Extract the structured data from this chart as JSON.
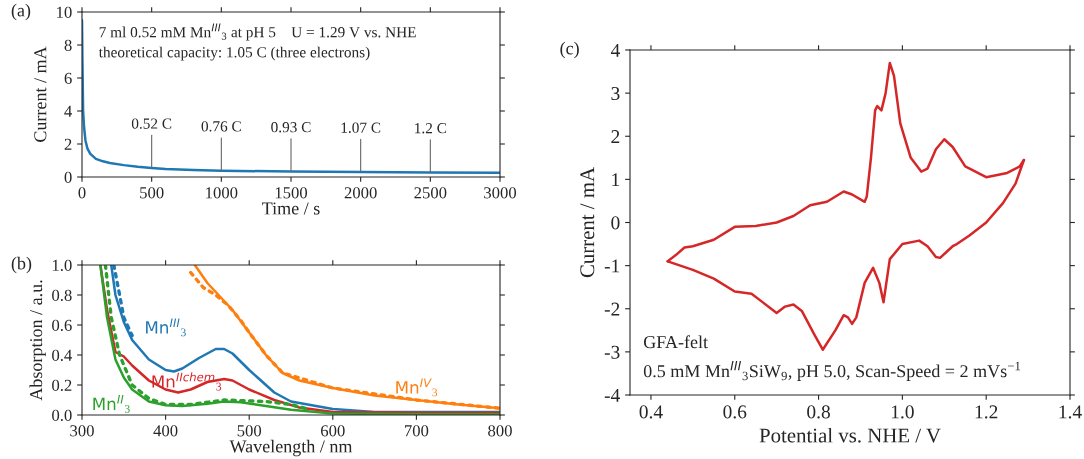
{
  "chart_data": [
    {
      "type": "line",
      "title": "(a)",
      "xlabel": "Time / s",
      "ylabel": "Current / mA",
      "xlim": [
        0,
        3000
      ],
      "ylim": [
        0,
        10
      ],
      "xticks": [
        0,
        500,
        1000,
        1500,
        2000,
        2500,
        3000
      ],
      "yticks": [
        0,
        2,
        4,
        6,
        8,
        10
      ],
      "series": [
        {
          "color": "#1f77b4",
          "x": [
            0,
            3,
            8,
            15,
            25,
            40,
            60,
            100,
            150,
            200,
            300,
            400,
            500,
            600,
            800,
            1000,
            1500,
            2000,
            2500,
            3000
          ],
          "values": [
            9.5,
            7,
            4,
            3,
            2.2,
            1.7,
            1.4,
            1.1,
            0.95,
            0.85,
            0.72,
            0.62,
            0.55,
            0.48,
            0.42,
            0.38,
            0.33,
            0.3,
            0.27,
            0.25
          ]
        }
      ],
      "annotations": [
        "7 ml 0.52 mM Mn$^{III}$$_{3}$ at pH 5    U = 1.29 V vs. NHE",
        "theoretical capacity: 1.05 C (three electrons)",
        {
          "text": "0.52 C",
          "x": 500,
          "y": 0.55
        },
        {
          "text": "0.76 C",
          "x": 1000,
          "y": 0.38
        },
        {
          "text": "0.93 C",
          "x": 1500,
          "y": 0.33
        },
        {
          "text": "1.07 C",
          "x": 2000,
          "y": 0.3
        },
        {
          "text": "1.2 C",
          "x": 2500,
          "y": 0.27
        }
      ]
    },
    {
      "type": "line",
      "title": "(b)",
      "xlabel": "Wavelength / nm",
      "ylabel": "Absorption / a.u.",
      "xlim": [
        300,
        800
      ],
      "ylim": [
        0,
        1
      ],
      "xticks": [
        300,
        400,
        500,
        600,
        700,
        800
      ],
      "yticks": [
        {
          "value": 0,
          "label": "0.0"
        },
        0.2,
        0.4,
        0.6,
        0.8,
        {
          "value": 1,
          "label": "1.0"
        }
      ],
      "series": [
        {
          "name": "Mn$^{III}$$_{3}$",
          "color": "#1f77b4",
          "x": [
            335,
            340,
            350,
            360,
            380,
            400,
            410,
            420,
            440,
            460,
            470,
            480,
            500,
            510,
            530,
            550,
            600,
            650,
            700,
            800
          ],
          "values": [
            1.0,
            0.8,
            0.62,
            0.5,
            0.37,
            0.3,
            0.29,
            0.31,
            0.38,
            0.44,
            0.44,
            0.41,
            0.3,
            0.25,
            0.15,
            0.09,
            0.04,
            0.02,
            0.02,
            0.02
          ]
        },
        {
          "name": "Mn$^{IIchem}$$_{3}$",
          "color": "#d62728",
          "x": [
            322,
            330,
            340,
            350,
            360,
            380,
            400,
            415,
            430,
            450,
            470,
            480,
            500,
            530,
            560,
            600,
            700,
            800
          ],
          "values": [
            1.0,
            0.7,
            0.42,
            0.39,
            0.33,
            0.23,
            0.17,
            0.15,
            0.17,
            0.22,
            0.24,
            0.23,
            0.17,
            0.1,
            0.05,
            0.02,
            0.015,
            0.015
          ]
        },
        {
          "name": "Mn$^{II}$$_{3}$",
          "color": "#2ca02c",
          "x": [
            322,
            330,
            340,
            350,
            360,
            380,
            400,
            420,
            450,
            470,
            490,
            520,
            550,
            600,
            700,
            800
          ],
          "values": [
            1.0,
            0.65,
            0.37,
            0.25,
            0.17,
            0.09,
            0.065,
            0.06,
            0.075,
            0.09,
            0.085,
            0.06,
            0.035,
            0.01,
            0.005,
            0.005
          ]
        },
        {
          "name": "Mn$^{IV}$$_{3}$",
          "color": "#ff7f0e",
          "x": [
            435,
            450,
            470,
            480,
            500,
            520,
            540,
            560,
            600,
            650,
            700,
            750,
            800
          ],
          "values": [
            1.0,
            0.88,
            0.76,
            0.7,
            0.55,
            0.4,
            0.28,
            0.23,
            0.18,
            0.13,
            0.1,
            0.07,
            0.045
          ]
        },
        {
          "color": "#1f77b4",
          "line_style": "dotted",
          "x": [
            338,
            345,
            350,
            360
          ],
          "values": [
            1.0,
            0.8,
            0.65,
            0.53
          ]
        },
        {
          "color": "#2ca02c",
          "line_style": "dotted",
          "x": [
            328,
            335,
            345,
            360,
            380,
            400,
            430,
            470,
            520,
            550,
            570
          ],
          "values": [
            1.0,
            0.65,
            0.4,
            0.2,
            0.11,
            0.07,
            0.07,
            0.1,
            0.09,
            0.07,
            0.04
          ]
        },
        {
          "color": "#ff7f0e",
          "line_style": "dotted",
          "x": [
            430,
            445,
            460,
            475,
            490,
            500,
            520,
            540,
            600,
            700,
            800
          ],
          "values": [
            0.95,
            0.85,
            0.8,
            0.73,
            0.63,
            0.55,
            0.4,
            0.28,
            0.18,
            0.1,
            0.045
          ]
        }
      ],
      "legend": false
    },
    {
      "type": "line",
      "title": "(c)",
      "xlabel": "Potential vs. NHE / V",
      "ylabel": "Current / mA",
      "xlim": [
        0.35,
        1.4
      ],
      "ylim": [
        -4,
        4
      ],
      "xticks": [
        0.4,
        0.6,
        0.8,
        {
          "value": 1.0,
          "label": "1.0"
        },
        1.2,
        1.4
      ],
      "yticks": [
        {
          "value": -4,
          "label": "-4"
        },
        {
          "value": -3,
          "label": "-3"
        },
        {
          "value": -2,
          "label": "-2"
        },
        {
          "value": -1,
          "label": "-1"
        },
        0,
        1,
        2,
        3,
        4
      ],
      "series": [
        {
          "color": "#d62728",
          "x": [
            0.44,
            0.46,
            0.48,
            0.5,
            0.55,
            0.6,
            0.65,
            0.7,
            0.74,
            0.78,
            0.82,
            0.86,
            0.88,
            0.91,
            0.915,
            0.925,
            0.935,
            0.94,
            0.95,
            0.96,
            0.97,
            0.98,
            0.995,
            1.02,
            1.045,
            1.06,
            1.08,
            1.1,
            1.12,
            1.15,
            1.2,
            1.25,
            1.28,
            1.29
          ],
          "values": [
            -0.9,
            -0.75,
            -0.58,
            -0.55,
            -0.4,
            -0.1,
            -0.08,
            0.0,
            0.15,
            0.4,
            0.48,
            0.72,
            0.65,
            0.48,
            0.6,
            1.5,
            2.6,
            2.7,
            2.6,
            3.0,
            3.7,
            3.4,
            2.3,
            1.5,
            1.18,
            1.25,
            1.7,
            1.93,
            1.75,
            1.3,
            1.05,
            1.15,
            1.3,
            1.45
          ]
        },
        {
          "color": "#d62728",
          "x": [
            1.29,
            1.27,
            1.24,
            1.2,
            1.16,
            1.13,
            1.12,
            1.09,
            1.08,
            1.06,
            1.04,
            1.0,
            0.97,
            0.955,
            0.945,
            0.93,
            0.91,
            0.89,
            0.88,
            0.87,
            0.86,
            0.84,
            0.81,
            0.79,
            0.76,
            0.74,
            0.72,
            0.7,
            0.66,
            0.64,
            0.6,
            0.55,
            0.5,
            0.44
          ],
          "values": [
            1.45,
            0.9,
            0.45,
            0.0,
            -0.3,
            -0.5,
            -0.55,
            -0.82,
            -0.8,
            -0.55,
            -0.42,
            -0.5,
            -0.85,
            -1.85,
            -1.4,
            -1.05,
            -1.4,
            -2.2,
            -2.35,
            -2.2,
            -2.15,
            -2.5,
            -2.95,
            -2.6,
            -2.05,
            -1.9,
            -1.95,
            -2.1,
            -1.8,
            -1.65,
            -1.6,
            -1.3,
            -1.1,
            -0.9
          ]
        }
      ],
      "annotations": [
        "GFA-felt",
        "0.5 mM Mn$^{III}$$_{3}$SiW$_{9}$, pH 5.0, Scan-Speed = 2 mVs$^{−1}$"
      ]
    }
  ]
}
